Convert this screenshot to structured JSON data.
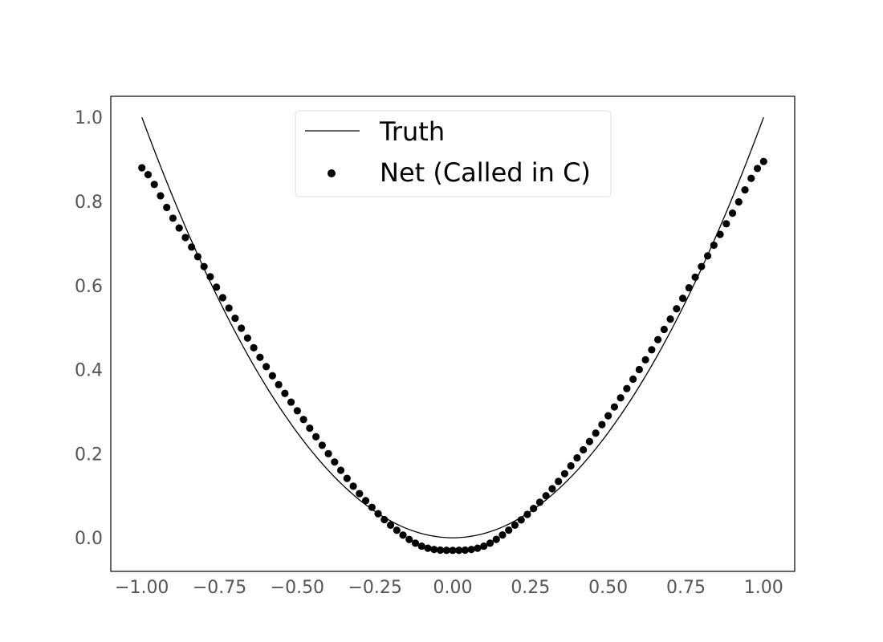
{
  "chart_data": {
    "type": "scatter",
    "title": "",
    "xlabel": "",
    "ylabel": "",
    "xlim": [
      -1.1,
      1.1
    ],
    "ylim": [
      -0.08,
      1.05
    ],
    "grid": false,
    "legend_position": "top-center",
    "x_ticks": [
      -1.0,
      -0.75,
      -0.5,
      -0.25,
      0.0,
      0.25,
      0.5,
      0.75,
      1.0
    ],
    "x_tick_labels": [
      "−1.00",
      "−0.75",
      "−0.50",
      "−0.25",
      "0.00",
      "0.25",
      "0.50",
      "0.75",
      "1.00"
    ],
    "y_ticks": [
      0.0,
      0.2,
      0.4,
      0.6,
      0.8,
      1.0
    ],
    "y_tick_labels": [
      "0.0",
      "0.2",
      "0.4",
      "0.6",
      "0.8",
      "1.0"
    ],
    "series": [
      {
        "name": "Truth",
        "kind": "line",
        "color": "#000000",
        "function": "x^2",
        "x_range": [
          -1.0,
          1.0
        ]
      },
      {
        "name": "Net (Called in C)",
        "kind": "scatter",
        "color": "#000000",
        "x_range": [
          -1.0,
          1.0
        ],
        "num_points": 101,
        "points": [
          [
            -1.0,
            0.88
          ],
          [
            -0.9,
            0.76
          ],
          [
            -0.8,
            0.645
          ],
          [
            -0.7,
            0.522
          ],
          [
            -0.6,
            0.407
          ],
          [
            -0.5,
            0.302
          ],
          [
            -0.4,
            0.2
          ],
          [
            -0.3,
            0.105
          ],
          [
            -0.2,
            0.03
          ],
          [
            -0.1,
            -0.02
          ],
          [
            0.0,
            -0.03
          ],
          [
            0.1,
            -0.02
          ],
          [
            0.2,
            0.03
          ],
          [
            0.3,
            0.1
          ],
          [
            0.4,
            0.19
          ],
          [
            0.5,
            0.29
          ],
          [
            0.6,
            0.4
          ],
          [
            0.7,
            0.52
          ],
          [
            0.8,
            0.645
          ],
          [
            0.9,
            0.772
          ],
          [
            1.0,
            0.895
          ]
        ]
      }
    ]
  }
}
